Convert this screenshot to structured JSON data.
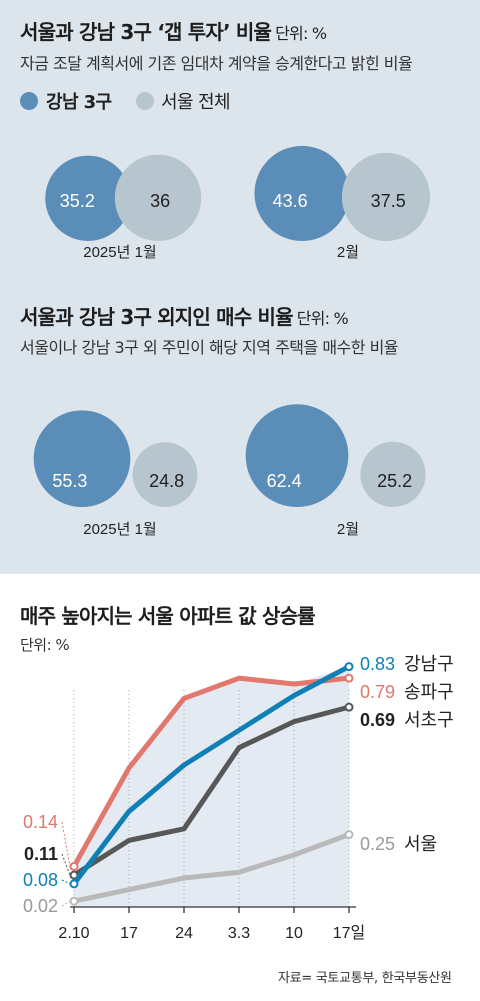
{
  "gap_investment": {
    "title": "서울과 강남 3구 ‘갭 투자’ 비율",
    "unit": "단위: %",
    "subtitle": "자금 조달 계획서에 기존 임대차 계약을 승계한다고 밝힌 비율",
    "legend": [
      {
        "label": "강남 3구",
        "color": "#5b8db9"
      },
      {
        "label": "서울 전체",
        "color": "#b7c5cf"
      }
    ]
  },
  "outsider_purchase": {
    "title": "서울과 강남 3구 외지인 매수 비율",
    "unit": "단위: %",
    "subtitle": "서울이나 강남 3구 외 주민이 해당 지역 주택을 매수한 비율"
  },
  "price_chart": {
    "title": "매주 높아지는 서울 아파트 값 상승률",
    "unit": "단위: %",
    "source": "자료= 국토교통부, 한국부동산원"
  },
  "chart_data": [
    {
      "type": "bubble",
      "title": "서울과 강남 3구 ‘갭 투자’ 비율",
      "unit": "%",
      "categories": [
        "2025년 1월",
        "2월"
      ],
      "series": [
        {
          "name": "강남 3구",
          "values": [
            35.2,
            43.6
          ],
          "color": "#5b8db9"
        },
        {
          "name": "서울 전체",
          "values": [
            36,
            37.5
          ],
          "color": "#b7c5cf"
        }
      ]
    },
    {
      "type": "bubble",
      "title": "서울과 강남 3구 외지인 매수 비율",
      "unit": "%",
      "categories": [
        "2025년 1월",
        "2월"
      ],
      "series": [
        {
          "name": "강남 3구",
          "values": [
            55.3,
            62.4
          ],
          "color": "#5b8db9"
        },
        {
          "name": "서울 전체",
          "values": [
            24.8,
            25.2
          ],
          "color": "#b7c5cf"
        }
      ]
    },
    {
      "type": "line",
      "title": "매주 높아지는 서울 아파트 값 상승률",
      "unit": "%",
      "x": [
        "2.10",
        "17",
        "24",
        "3.3",
        "10",
        "17일"
      ],
      "ylim": [
        0,
        0.87
      ],
      "grid": false,
      "series": [
        {
          "name": "강남구",
          "values": [
            0.08,
            0.33,
            0.49,
            0.61,
            0.73,
            0.83
          ],
          "color": "#0f7fb5",
          "start_label": "0.08",
          "end_label": "0.83"
        },
        {
          "name": "송파구",
          "values": [
            0.14,
            0.48,
            0.72,
            0.79,
            0.77,
            0.79
          ],
          "color": "#e1776d",
          "start_label": "0.14",
          "end_label": "0.79"
        },
        {
          "name": "서초구",
          "values": [
            0.11,
            0.23,
            0.27,
            0.55,
            0.64,
            0.69
          ],
          "color": "#575757",
          "start_label": "0.11",
          "end_label": "0.69"
        },
        {
          "name": "서울",
          "values": [
            0.02,
            0.06,
            0.1,
            0.12,
            0.18,
            0.25
          ],
          "color": "#b9b9b9",
          "start_label": "0.02",
          "end_label": "0.25"
        }
      ]
    }
  ]
}
